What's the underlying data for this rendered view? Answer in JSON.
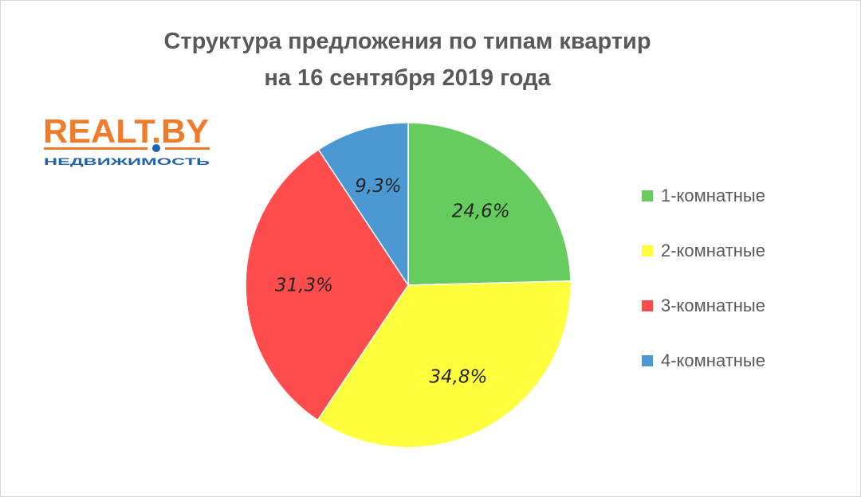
{
  "chart_data": {
    "type": "pie",
    "title": [
      "Структура предложения по типам квартир",
      "на 16 сентября 2019 года"
    ],
    "categories": [
      "1-комнатные",
      "2-комнатные",
      "3-комнатные",
      "4-комнатные"
    ],
    "values": [
      24.6,
      34.8,
      31.3,
      9.3
    ],
    "value_labels": [
      "24,6%",
      "34,8%",
      "31,3%",
      "9,3%"
    ],
    "colors": [
      "#66cc5e",
      "#ffff3d",
      "#ff4c4c",
      "#4b98d2"
    ],
    "start_angle_deg": 0,
    "direction": "clockwise",
    "legend": "right"
  },
  "logo": {
    "text": "REALT.BY",
    "subtitle": "НЕДВИЖИМОСТЬ",
    "brand_color": "#f07b2b",
    "accent_color": "#1f62b0"
  }
}
